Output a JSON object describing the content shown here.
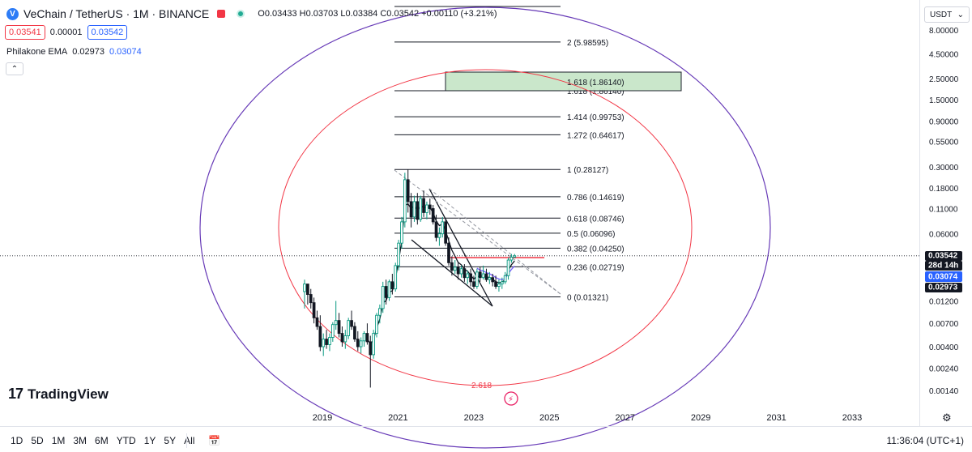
{
  "header": {
    "symbol_title": "VeChain / TetherUS · 1M · BINANCE",
    "ohlc": "O0.03433 H0.03703 L0.03384 C0.03542 +0.00110 (+3.21%)",
    "bid": "0.03541",
    "spread": "0.00001",
    "ask": "0.03542",
    "indicator_name": "Philakone EMA",
    "indicator_v1": "0.02973",
    "indicator_v2": "0.03074",
    "collapse_icon": "chevron-up-icon",
    "currency": "USDT"
  },
  "branding": {
    "logo_mark": "17",
    "logo_text": "TradingView"
  },
  "bottom_bar": {
    "ranges": [
      "1D",
      "5D",
      "1M",
      "3M",
      "6M",
      "YTD",
      "1Y",
      "5Y",
      "All"
    ],
    "clock": "11:36:04 (UTC+1)"
  },
  "colors": {
    "up": "#089981",
    "down": "#131722",
    "fib_zone": "#c8e6c9",
    "circle_red": "#f23645",
    "circle_purple": "#673ab7",
    "ema_blue": "#2962ff"
  },
  "chart_data": {
    "type": "candlestick",
    "title": "VeChain / TetherUS · 1M · BINANCE",
    "xlabel": "",
    "ylabel": "",
    "y_scale": "log",
    "ylim": [
      0.0011,
      10.0
    ],
    "xlim": [
      2017.85,
      2034.0
    ],
    "x_ticks": [
      "2019",
      "2021",
      "2023",
      "2025",
      "2027",
      "2029",
      "2031",
      "2033"
    ],
    "y_ticks": [
      "8.00000",
      "4.50000",
      "2.50000",
      "1.50000",
      "0.90000",
      "0.55000",
      "0.30000",
      "0.18000",
      "0.11000",
      "0.06000",
      "0.01200",
      "0.00700",
      "0.00400",
      "0.00240",
      "0.00140"
    ],
    "last_price": "0.03542",
    "countdown": "28d 14h",
    "ema_labels": [
      "0.03074",
      "0.02973"
    ],
    "fib_levels": [
      {
        "label": "0 (0.01321)",
        "value": 0.01321
      },
      {
        "label": "0.236 (0.02719)",
        "value": 0.02719
      },
      {
        "label": "0.382 (0.04250)",
        "value": 0.0425
      },
      {
        "label": "0.5 (0.06096)",
        "value": 0.06096
      },
      {
        "label": "0.618 (0.08746)",
        "value": 0.08746
      },
      {
        "label": "0.786 (0.14619)",
        "value": 0.14619
      },
      {
        "label": "1 (0.28127)",
        "value": 0.28127
      },
      {
        "label": "1.272 (0.64617)",
        "value": 0.64617
      },
      {
        "label": "1.414 (0.99753)",
        "value": 0.99753
      },
      {
        "label": "1.618 (1.86140)",
        "value": 1.8614
      },
      {
        "label": "2 (5.98595)",
        "value": 5.98595
      }
    ],
    "fib_circle_label": "2.618",
    "candles": [
      {
        "o": 0.015,
        "h": 0.02,
        "l": 0.01,
        "c": 0.018
      },
      {
        "o": 0.018,
        "h": 0.017,
        "l": 0.011,
        "c": 0.014
      },
      {
        "o": 0.014,
        "h": 0.016,
        "l": 0.01,
        "c": 0.0115
      },
      {
        "o": 0.0115,
        "h": 0.013,
        "l": 0.007,
        "c": 0.008
      },
      {
        "o": 0.008,
        "h": 0.0095,
        "l": 0.006,
        "c": 0.0065
      },
      {
        "o": 0.0065,
        "h": 0.0085,
        "l": 0.0036,
        "c": 0.004
      },
      {
        "o": 0.004,
        "h": 0.0055,
        "l": 0.0032,
        "c": 0.0048
      },
      {
        "o": 0.0048,
        "h": 0.006,
        "l": 0.0038,
        "c": 0.0042
      },
      {
        "o": 0.0042,
        "h": 0.0055,
        "l": 0.0036,
        "c": 0.005
      },
      {
        "o": 0.005,
        "h": 0.0072,
        "l": 0.0045,
        "c": 0.0068
      },
      {
        "o": 0.0068,
        "h": 0.012,
        "l": 0.006,
        "c": 0.0075
      },
      {
        "o": 0.0075,
        "h": 0.009,
        "l": 0.005,
        "c": 0.0055
      },
      {
        "o": 0.0055,
        "h": 0.0065,
        "l": 0.004,
        "c": 0.0045
      },
      {
        "o": 0.0045,
        "h": 0.006,
        "l": 0.0038,
        "c": 0.0052
      },
      {
        "o": 0.0052,
        "h": 0.008,
        "l": 0.0048,
        "c": 0.0075
      },
      {
        "o": 0.0075,
        "h": 0.0095,
        "l": 0.006,
        "c": 0.0065
      },
      {
        "o": 0.0065,
        "h": 0.0072,
        "l": 0.0045,
        "c": 0.0048
      },
      {
        "o": 0.0048,
        "h": 0.0058,
        "l": 0.0036,
        "c": 0.004
      },
      {
        "o": 0.004,
        "h": 0.005,
        "l": 0.0034,
        "c": 0.0046
      },
      {
        "o": 0.0046,
        "h": 0.0058,
        "l": 0.004,
        "c": 0.0055
      },
      {
        "o": 0.0055,
        "h": 0.007,
        "l": 0.0042,
        "c": 0.0045
      },
      {
        "o": 0.0045,
        "h": 0.0052,
        "l": 0.0015,
        "c": 0.0033
      },
      {
        "o": 0.0033,
        "h": 0.006,
        "l": 0.003,
        "c": 0.0055
      },
      {
        "o": 0.0055,
        "h": 0.009,
        "l": 0.005,
        "c": 0.0085
      },
      {
        "o": 0.0085,
        "h": 0.011,
        "l": 0.007,
        "c": 0.01
      },
      {
        "o": 0.01,
        "h": 0.019,
        "l": 0.009,
        "c": 0.017
      },
      {
        "o": 0.017,
        "h": 0.02,
        "l": 0.011,
        "c": 0.013
      },
      {
        "o": 0.013,
        "h": 0.02,
        "l": 0.012,
        "c": 0.019
      },
      {
        "o": 0.019,
        "h": 0.023,
        "l": 0.014,
        "c": 0.016
      },
      {
        "o": 0.016,
        "h": 0.03,
        "l": 0.015,
        "c": 0.028
      },
      {
        "o": 0.028,
        "h": 0.052,
        "l": 0.025,
        "c": 0.048
      },
      {
        "o": 0.048,
        "h": 0.09,
        "l": 0.042,
        "c": 0.08
      },
      {
        "o": 0.08,
        "h": 0.26,
        "l": 0.07,
        "c": 0.22
      },
      {
        "o": 0.22,
        "h": 0.28,
        "l": 0.1,
        "c": 0.13
      },
      {
        "o": 0.13,
        "h": 0.16,
        "l": 0.07,
        "c": 0.09
      },
      {
        "o": 0.09,
        "h": 0.15,
        "l": 0.08,
        "c": 0.13
      },
      {
        "o": 0.13,
        "h": 0.16,
        "l": 0.075,
        "c": 0.085
      },
      {
        "o": 0.085,
        "h": 0.15,
        "l": 0.08,
        "c": 0.14
      },
      {
        "o": 0.14,
        "h": 0.17,
        "l": 0.09,
        "c": 0.1
      },
      {
        "o": 0.1,
        "h": 0.13,
        "l": 0.085,
        "c": 0.12
      },
      {
        "o": 0.12,
        "h": 0.14,
        "l": 0.095,
        "c": 0.11
      },
      {
        "o": 0.11,
        "h": 0.12,
        "l": 0.075,
        "c": 0.08
      },
      {
        "o": 0.08,
        "h": 0.095,
        "l": 0.05,
        "c": 0.055
      },
      {
        "o": 0.055,
        "h": 0.07,
        "l": 0.045,
        "c": 0.06
      },
      {
        "o": 0.06,
        "h": 0.09,
        "l": 0.055,
        "c": 0.08
      },
      {
        "o": 0.08,
        "h": 0.085,
        "l": 0.045,
        "c": 0.048
      },
      {
        "o": 0.048,
        "h": 0.055,
        "l": 0.028,
        "c": 0.03
      },
      {
        "o": 0.03,
        "h": 0.035,
        "l": 0.022,
        "c": 0.025
      },
      {
        "o": 0.025,
        "h": 0.032,
        "l": 0.023,
        "c": 0.027
      },
      {
        "o": 0.027,
        "h": 0.03,
        "l": 0.02,
        "c": 0.023
      },
      {
        "o": 0.023,
        "h": 0.028,
        "l": 0.021,
        "c": 0.026
      },
      {
        "o": 0.026,
        "h": 0.029,
        "l": 0.019,
        "c": 0.021
      },
      {
        "o": 0.021,
        "h": 0.025,
        "l": 0.018,
        "c": 0.023
      },
      {
        "o": 0.023,
        "h": 0.026,
        "l": 0.017,
        "c": 0.019
      },
      {
        "o": 0.019,
        "h": 0.022,
        "l": 0.016,
        "c": 0.017
      },
      {
        "o": 0.017,
        "h": 0.026,
        "l": 0.016,
        "c": 0.024
      },
      {
        "o": 0.024,
        "h": 0.027,
        "l": 0.019,
        "c": 0.021
      },
      {
        "o": 0.021,
        "h": 0.028,
        "l": 0.02,
        "c": 0.023
      },
      {
        "o": 0.023,
        "h": 0.026,
        "l": 0.019,
        "c": 0.02
      },
      {
        "o": 0.02,
        "h": 0.024,
        "l": 0.018,
        "c": 0.021
      },
      {
        "o": 0.021,
        "h": 0.023,
        "l": 0.017,
        "c": 0.019
      },
      {
        "o": 0.019,
        "h": 0.022,
        "l": 0.016,
        "c": 0.017
      },
      {
        "o": 0.017,
        "h": 0.02,
        "l": 0.015,
        "c": 0.018
      },
      {
        "o": 0.018,
        "h": 0.021,
        "l": 0.016,
        "c": 0.019
      },
      {
        "o": 0.019,
        "h": 0.024,
        "l": 0.018,
        "c": 0.022
      },
      {
        "o": 0.022,
        "h": 0.034,
        "l": 0.02,
        "c": 0.032
      },
      {
        "o": 0.032,
        "h": 0.037,
        "l": 0.03,
        "c": 0.0343
      },
      {
        "o": 0.03433,
        "h": 0.03703,
        "l": 0.03384,
        "c": 0.03542
      }
    ]
  }
}
